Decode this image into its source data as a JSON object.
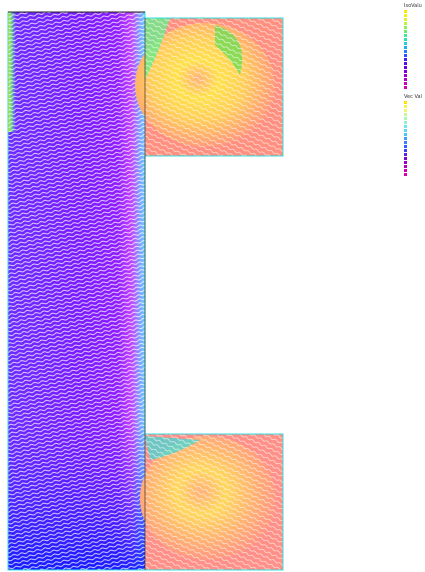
{
  "iso_legend": {
    "title": "IsoValu",
    "colors": [
      "#ffe600",
      "#f5f01e",
      "#d8f535",
      "#b5f545",
      "#8cf255",
      "#66ee66",
      "#45e88a",
      "#2fe0b0",
      "#20d0d8",
      "#1ab0f0",
      "#2080ff",
      "#3050ff",
      "#4020f0",
      "#5010e0",
      "#6a00d8",
      "#8000d8",
      "#9800cc",
      "#b000c4",
      "#c800bc",
      "#d800b0"
    ],
    "tick_labels": [
      "",
      "",
      "",
      "",
      "",
      "",
      "",
      "",
      "",
      "",
      "",
      "",
      "",
      "",
      "",
      "",
      "",
      "",
      "",
      ""
    ]
  },
  "vec_legend": {
    "title": "Vec Val",
    "colors": [
      "#ffe600",
      "#f8f050",
      "#e8f870",
      "#c8f890",
      "#a8f8b0",
      "#90f0d0",
      "#70e8e8",
      "#60d8f8",
      "#50c0ff",
      "#40a0ff",
      "#4080ff",
      "#3060ff",
      "#4040f0",
      "#6020e0",
      "#8000d0",
      "#9800c8",
      "#b000c0",
      "#c800b8",
      "#d800b0"
    ],
    "tick_labels": [
      "",
      "",
      "",
      "",
      "",
      "",
      "",
      "",
      "",
      "",
      "",
      "",
      "",
      "",
      "",
      "",
      "",
      "",
      ""
    ]
  },
  "geometry_colors": {
    "domain_outline": "#33dddd",
    "channel_fill": "#7a1aff",
    "cavity_fill": "#ff9a80",
    "vortex_core": "#ffd84d",
    "vector_color": "#ffffff"
  }
}
